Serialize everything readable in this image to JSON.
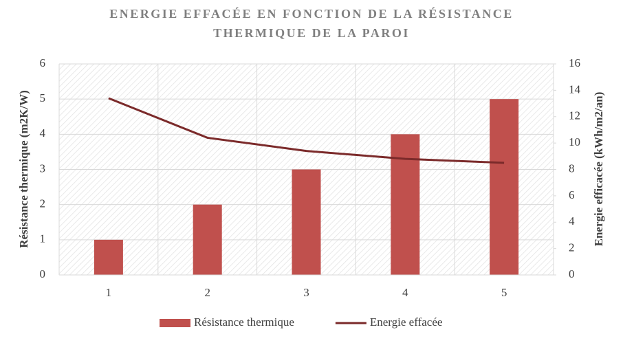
{
  "chart_data": {
    "type": "bar-line",
    "title": [
      "ENERGIE EFFACÉE EN FONCTION DE LA RÉSISTANCE",
      "THERMIQUE DE LA PAROI"
    ],
    "categories": [
      "1",
      "2",
      "3",
      "4",
      "5"
    ],
    "y_label": "Résistance thermique (m2K/W)",
    "y2_label": "Energie efficacée (kWh/m2/an)",
    "series": [
      {
        "name": "Résistance thermique",
        "type": "bar",
        "color": "#c0504d",
        "values": [
          1,
          2,
          3,
          4,
          5
        ]
      },
      {
        "name": "Energie effacée",
        "type": "line",
        "axis": "y2",
        "color": "#7b2a2a",
        "values": [
          13.4,
          10.4,
          9.4,
          8.8,
          8.5
        ]
      }
    ],
    "ylim": [
      0,
      6
    ],
    "yticks": [
      0,
      1,
      2,
      3,
      4,
      5,
      6
    ],
    "y2lim": [
      0,
      16
    ],
    "y2ticks": [
      0,
      2,
      4,
      6,
      8,
      10,
      12,
      14,
      16
    ],
    "grid": true,
    "legend": "bottom"
  }
}
